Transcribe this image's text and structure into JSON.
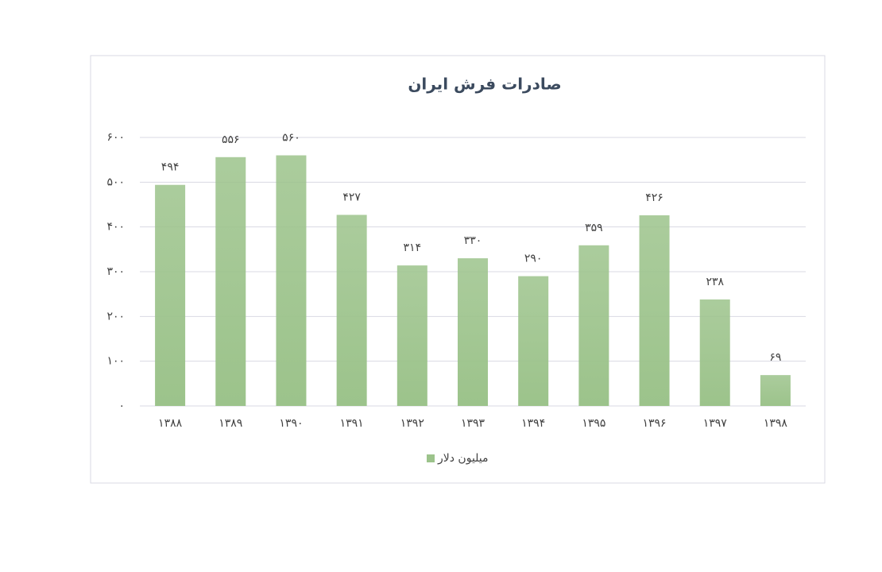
{
  "chart_data": {
    "type": "bar",
    "title": "صادرات فرش ایران",
    "categories": [
      "۱۳۸۸",
      "۱۳۸۹",
      "۱۳۹۰",
      "۱۳۹۱",
      "۱۳۹۲",
      "۱۳۹۳",
      "۱۳۹۴",
      "۱۳۹۵",
      "۱۳۹۶",
      "۱۳۹۷",
      "۱۳۹۸"
    ],
    "series": [
      {
        "name": "میلیون دلار",
        "color": "#9cc38b",
        "values": [
          494,
          556,
          560,
          427,
          314,
          330,
          290,
          359,
          426,
          238,
          69
        ],
        "value_labels": [
          "۴۹۴",
          "۵۵۶",
          "۵۶۰",
          "۴۲۷",
          "۳۱۴",
          "۳۳۰",
          "۲۹۰",
          "۳۵۹",
          "۴۲۶",
          "۲۳۸",
          "۶۹"
        ]
      }
    ],
    "ylim": [
      0,
      600
    ],
    "yticks": [
      {
        "value": 0,
        "label": "۰"
      },
      {
        "value": 100,
        "label": "۱۰۰"
      },
      {
        "value": 200,
        "label": "۲۰۰"
      },
      {
        "value": 300,
        "label": "۳۰۰"
      },
      {
        "value": 400,
        "label": "۴۰۰"
      },
      {
        "value": 500,
        "label": "۵۰۰"
      },
      {
        "value": 600,
        "label": "۶۰۰"
      }
    ],
    "grid": true,
    "legend": "bottom"
  }
}
